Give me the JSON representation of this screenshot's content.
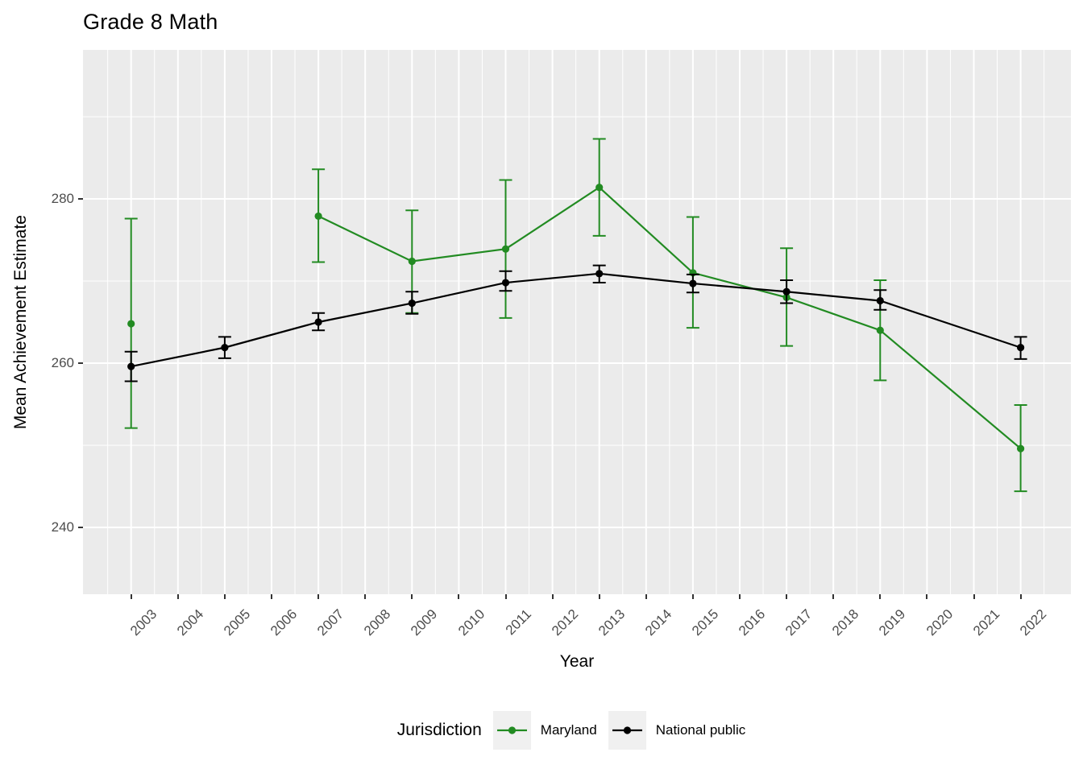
{
  "chart_data": {
    "type": "line",
    "title": "Grade 8 Math",
    "xlabel": "Year",
    "ylabel": "Mean Achievement Estimate",
    "legend_title": "Jurisdiction",
    "legend_position": "bottom",
    "panel_background": "#EBEBEB",
    "grid_color": "#FFFFFF",
    "tick_label_color": "#4D4D4D",
    "x_ticks": [
      2003,
      2004,
      2005,
      2006,
      2007,
      2008,
      2009,
      2010,
      2011,
      2012,
      2013,
      2014,
      2015,
      2016,
      2017,
      2018,
      2019,
      2020,
      2021,
      2022
    ],
    "y_major_ticks": [
      240,
      260,
      280
    ],
    "y_minor_ticks": [
      250,
      270,
      290
    ],
    "x_range": [
      2001.97,
      2023.07
    ],
    "y_range": [
      231.9,
      298.1
    ],
    "series": [
      {
        "name": "Maryland",
        "color": "#228B22",
        "years": [
          2003,
          2007,
          2009,
          2011,
          2013,
          2015,
          2017,
          2019,
          2022
        ],
        "values": [
          264.8,
          277.9,
          272.4,
          273.9,
          281.4,
          271.0,
          268.0,
          264.0,
          249.6
        ],
        "ci_low": [
          252.1,
          272.3,
          266.1,
          265.5,
          275.5,
          264.3,
          262.1,
          257.9,
          244.4
        ],
        "ci_high": [
          277.6,
          283.6,
          278.6,
          282.3,
          287.3,
          277.8,
          274.0,
          270.1,
          254.9
        ],
        "line_runs": [
          [
            2007,
            2009,
            2011,
            2013,
            2015,
            2017,
            2019,
            2022
          ]
        ]
      },
      {
        "name": "National public",
        "color": "#000000",
        "years": [
          2003,
          2005,
          2007,
          2009,
          2011,
          2013,
          2015,
          2017,
          2019,
          2022
        ],
        "values": [
          259.6,
          261.9,
          265.0,
          267.3,
          269.8,
          270.9,
          269.7,
          268.7,
          267.6,
          261.9
        ],
        "ci_low": [
          257.8,
          260.6,
          264.0,
          266.0,
          268.8,
          269.8,
          268.6,
          267.3,
          266.5,
          260.5
        ],
        "ci_high": [
          261.4,
          263.2,
          266.1,
          268.7,
          271.2,
          271.9,
          270.8,
          270.1,
          268.9,
          263.2
        ],
        "line_runs": [
          [
            2003,
            2005,
            2007,
            2009,
            2011,
            2013,
            2015,
            2017,
            2019,
            2022
          ]
        ]
      }
    ]
  }
}
